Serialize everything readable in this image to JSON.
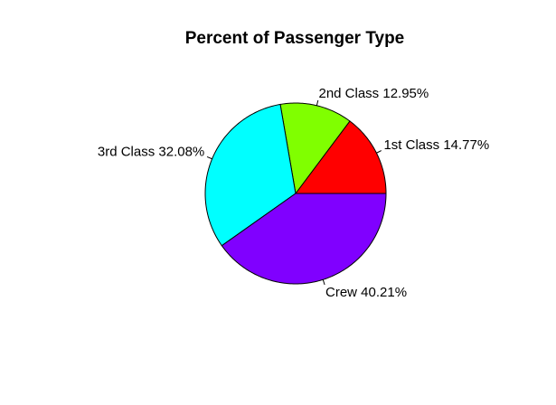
{
  "chart_data": {
    "type": "pie",
    "title": "Percent of Passenger Type",
    "start_angle_deg": 0,
    "direction": "counterclockwise",
    "slices": [
      {
        "label": "1st Class 14.77%",
        "value": 14.77,
        "color": "#FF0000"
      },
      {
        "label": "2nd Class 12.95%",
        "value": 12.95,
        "color": "#80FF00"
      },
      {
        "label": "3rd Class 32.08%",
        "value": 32.08,
        "color": "#00FFFF"
      },
      {
        "label": "Crew 40.21%",
        "value": 40.21,
        "color": "#8000FF"
      }
    ]
  }
}
